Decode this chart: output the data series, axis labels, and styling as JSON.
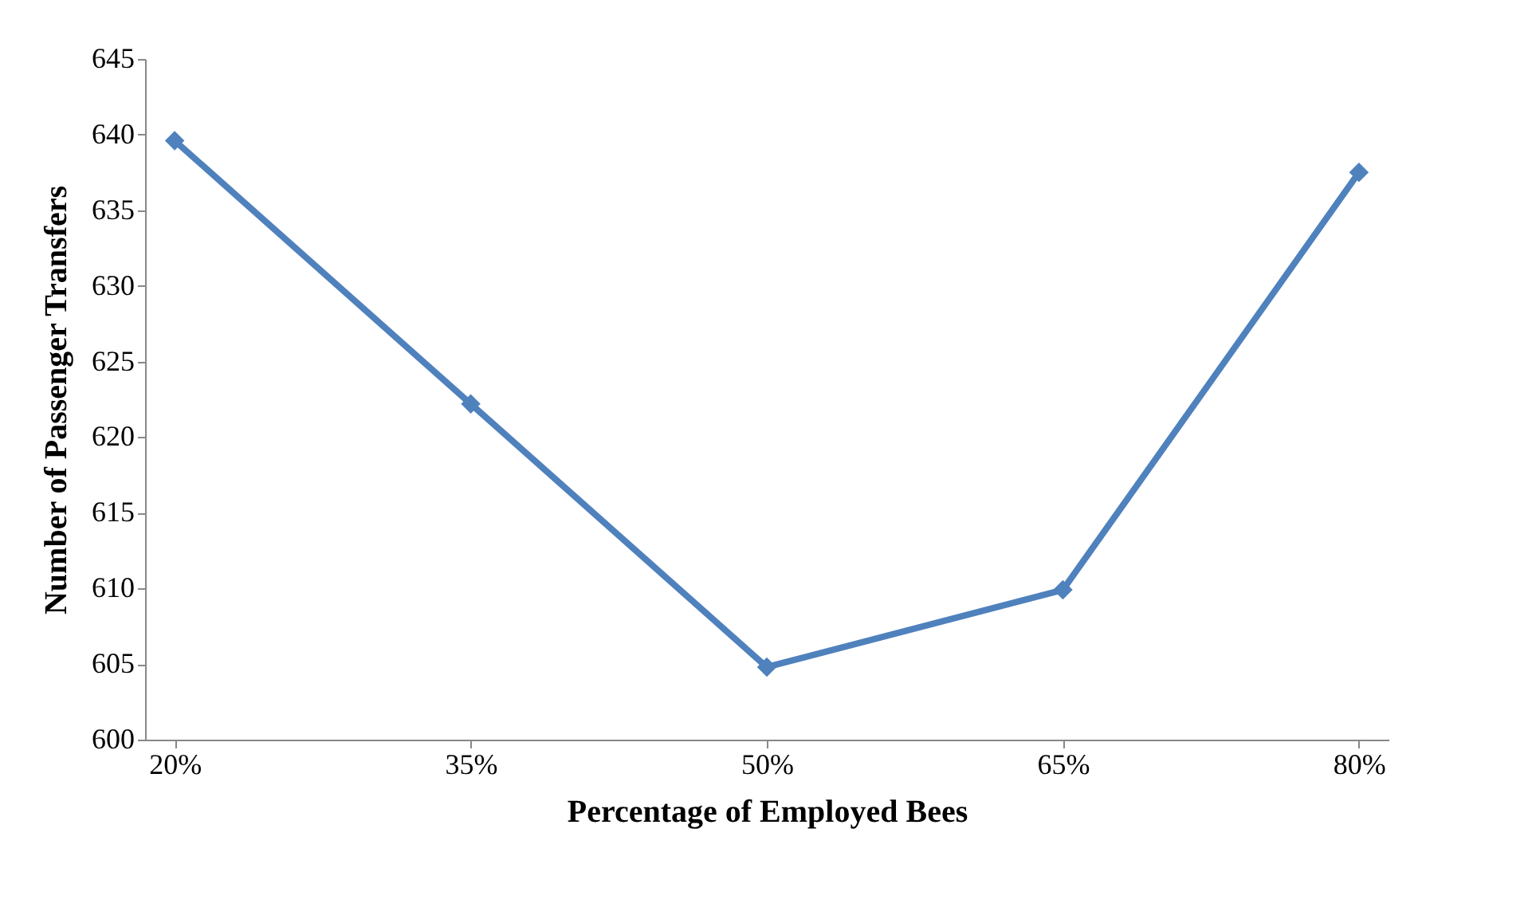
{
  "chart_data": {
    "type": "line",
    "xlabel": "Percentage of Employed Bees",
    "ylabel": "Number of Passenger Transfers",
    "categories": [
      "20%",
      "35%",
      "50%",
      "65%",
      "80%"
    ],
    "series": [
      {
        "color": "#4f81bd",
        "values": [
          639.6,
          622.2,
          604.8,
          609.9,
          637.5
        ]
      }
    ],
    "ylim": [
      600,
      645
    ],
    "yticks": [
      600,
      605,
      610,
      615,
      620,
      625,
      630,
      635,
      640,
      645
    ],
    "marker": "diamond",
    "line_style": "solid",
    "grid": false
  }
}
